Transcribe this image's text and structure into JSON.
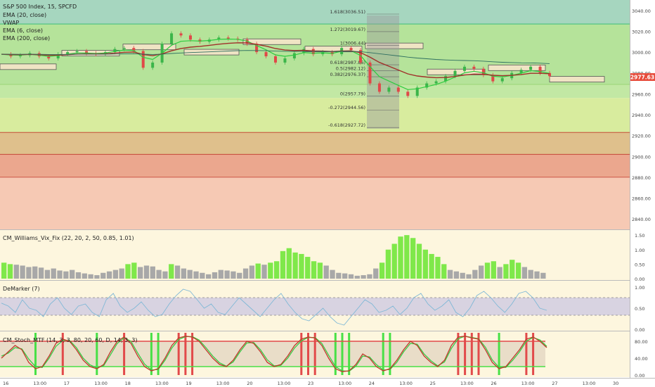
{
  "chart_data": [
    {
      "type": "line",
      "title": "S&P 500 Index, 15, SPCFD",
      "legend": [
        "EMA (20, close)",
        "VWAP",
        "EMA (6, close)",
        "EMA (200, close)"
      ],
      "legend_position": "top-left",
      "ylim": [
        2830,
        3050
      ],
      "y_ticks": [
        "3040.00",
        "3020.00",
        "3000.00",
        "2980.00",
        "2960.00",
        "2940.00",
        "2920.00",
        "2900.00",
        "2880.00",
        "2860.00",
        "2840.00"
      ],
      "last_price": "2977.63",
      "price_path": [
        2998,
        2996,
        2997,
        2999,
        2996,
        2994,
        2998,
        3000,
        3001,
        2999,
        2998,
        3000,
        3003,
        3004,
        3001,
        2985,
        2990,
        3008,
        3018,
        3016,
        3012,
        3010,
        3012,
        3014,
        3013,
        3012,
        3008,
        3000,
        2996,
        2990,
        2994,
        2999,
        3003,
        2998,
        3000,
        2998,
        3004,
        3002,
        2990,
        2970,
        2962,
        2966,
        2962,
        2958,
        2966,
        2970,
        2972,
        2977,
        2982,
        2986,
        2984,
        2978,
        2972,
        2975,
        2980,
        2983,
        2986,
        2980,
        2977
      ],
      "fib_levels": [
        {
          "label": "1.618(3036.51)",
          "value": 3036.51
        },
        {
          "label": "1.272(3019.67)",
          "value": 3019.67
        },
        {
          "label": "1(3006.44)",
          "value": 3006.44
        },
        {
          "label": "0.618(2987.86)",
          "value": 2987.86
        },
        {
          "label": "0.5(2982.12)",
          "value": 2982.12
        },
        {
          "label": "0.382(2976.37)",
          "value": 2976.37
        },
        {
          "label": "0(2957.79)",
          "value": 2957.79
        },
        {
          "label": "-0.272(2944.56)",
          "value": 2944.56
        },
        {
          "label": "-0.618(2927.72)",
          "value": 2927.72
        }
      ],
      "zones": [
        {
          "from": 3027,
          "to": 3050,
          "color": "#a6d6bf"
        },
        {
          "from": 2969,
          "to": 3027,
          "color": "#b5e39a"
        },
        {
          "from": 2956,
          "to": 2969,
          "color": "#c2e8a4"
        },
        {
          "from": 2923,
          "to": 2956,
          "color": "#d8ec9e"
        },
        {
          "from": 2902,
          "to": 2923,
          "color": "#dfc08c"
        },
        {
          "from": 2880,
          "to": 2902,
          "color": "#eba78e"
        },
        {
          "from": 2830,
          "to": 2880,
          "color": "#f6c9b4"
        }
      ],
      "boxes": [
        {
          "x0": 0,
          "x1": 80,
          "value": 2986
        },
        {
          "x0": 88,
          "x1": 170,
          "value": 2999
        },
        {
          "x0": 175,
          "x1": 250,
          "value": 3005
        },
        {
          "x0": 262,
          "x1": 340,
          "value": 3000
        },
        {
          "x0": 346,
          "x1": 428,
          "value": 3010
        },
        {
          "x0": 434,
          "x1": 515,
          "value": 3003
        },
        {
          "x0": 520,
          "x1": 602,
          "value": 3006
        },
        {
          "x0": 608,
          "x1": 690,
          "value": 2981
        },
        {
          "x0": 695,
          "x1": 776,
          "value": 2985
        },
        {
          "x0": 782,
          "x1": 860,
          "value": 2974
        }
      ]
    },
    {
      "type": "bar",
      "title": "CM_Williams_Vix_Fix (22, 20, 2, 50, 0.85, 1.01)",
      "ylim": [
        0,
        1.6
      ],
      "y_ticks": [
        "1.50",
        "1.00",
        "0.50",
        "0.00"
      ],
      "values": [
        0.55,
        0.5,
        0.48,
        0.45,
        0.4,
        0.42,
        0.38,
        0.3,
        0.35,
        0.28,
        0.25,
        0.3,
        0.22,
        0.18,
        0.15,
        0.12,
        0.2,
        0.25,
        0.3,
        0.35,
        0.5,
        0.55,
        0.4,
        0.45,
        0.42,
        0.3,
        0.25,
        0.5,
        0.45,
        0.35,
        0.3,
        0.25,
        0.2,
        0.15,
        0.22,
        0.3,
        0.28,
        0.25,
        0.2,
        0.35,
        0.45,
        0.52,
        0.48,
        0.55,
        0.6,
        0.95,
        1.05,
        0.9,
        0.85,
        0.75,
        0.6,
        0.55,
        0.45,
        0.3,
        0.2,
        0.18,
        0.15,
        0.1,
        0.12,
        0.15,
        0.35,
        0.55,
        1.0,
        1.2,
        1.45,
        1.5,
        1.4,
        1.2,
        1.0,
        0.85,
        0.75,
        0.5,
        0.3,
        0.25,
        0.2,
        0.15,
        0.3,
        0.45,
        0.55,
        0.6,
        0.4,
        0.5,
        0.65,
        0.55,
        0.4,
        0.3,
        0.25,
        0.2
      ],
      "highlight_color": "#7fe84a",
      "bar_color": "#a8a8a8"
    },
    {
      "type": "line",
      "title": "DeMarker (7)",
      "ylim": [
        0,
        1.1
      ],
      "y_ticks": [
        "1.00",
        "0.50",
        "0.00"
      ],
      "levels": [
        0.3,
        0.7
      ],
      "values": [
        0.62,
        0.55,
        0.4,
        0.7,
        0.5,
        0.45,
        0.3,
        0.6,
        0.75,
        0.5,
        0.35,
        0.55,
        0.6,
        0.4,
        0.3,
        0.7,
        0.85,
        0.55,
        0.4,
        0.5,
        0.65,
        0.45,
        0.3,
        0.35,
        0.6,
        0.8,
        0.95,
        0.9,
        0.7,
        0.5,
        0.6,
        0.4,
        0.35,
        0.55,
        0.75,
        0.6,
        0.45,
        0.3,
        0.5,
        0.7,
        0.85,
        0.6,
        0.4,
        0.25,
        0.2,
        0.35,
        0.5,
        0.3,
        0.15,
        0.1,
        0.3,
        0.5,
        0.7,
        0.6,
        0.4,
        0.45,
        0.55,
        0.35,
        0.5,
        0.75,
        0.85,
        0.6,
        0.45,
        0.55,
        0.7,
        0.4,
        0.3,
        0.5,
        0.8,
        0.9,
        0.75,
        0.55,
        0.4,
        0.6,
        0.85,
        0.9,
        0.75,
        0.5,
        0.45
      ]
    },
    {
      "type": "line",
      "title": "CM_Stoch_MTF (14, 3, 3, 80, 20, 60, D, 14, 3, 3)",
      "ylim": [
        0,
        100
      ],
      "y_ticks": [
        "80.00",
        "40.00",
        "0.00"
      ],
      "levels": [
        80,
        20
      ],
      "values": [
        40,
        55,
        70,
        60,
        30,
        15,
        20,
        45,
        75,
        85,
        80,
        60,
        35,
        20,
        15,
        25,
        55,
        80,
        90,
        75,
        45,
        20,
        10,
        15,
        40,
        70,
        88,
        92,
        90,
        80,
        60,
        40,
        25,
        20,
        35,
        60,
        80,
        75,
        55,
        30,
        20,
        25,
        45,
        70,
        85,
        90,
        88,
        70,
        40,
        15,
        8,
        10,
        25,
        50,
        40,
        20,
        10,
        15,
        35,
        60,
        80,
        70,
        45,
        30,
        20,
        35,
        70,
        90,
        92,
        88,
        85,
        60,
        30,
        15,
        20,
        40,
        60,
        85,
        90,
        80,
        65
      ],
      "signal_values": [
        45,
        52,
        65,
        62,
        38,
        20,
        18,
        40,
        68,
        82,
        82,
        65,
        40,
        24,
        17,
        22,
        48,
        75,
        88,
        80,
        52,
        26,
        12,
        13,
        35,
        64,
        84,
        91,
        91,
        83,
        65,
        45,
        29,
        21,
        31,
        55,
        76,
        77,
        60,
        36,
        22,
        23,
        40,
        64,
        81,
        89,
        89,
        75,
        47,
        20,
        10,
        9,
        21,
        45,
        43,
        25,
        12,
        13,
        30,
        55,
        75,
        73,
        50,
        34,
        22,
        31,
        63,
        86,
        92,
        89,
        86,
        66,
        36,
        18,
        18,
        35,
        55,
        80,
        89,
        83,
        68
      ],
      "line_color": "#c0392b",
      "signal_color": "#2ecc40"
    }
  ],
  "x_axis": {
    "labels": [
      "16",
      "13:00",
      "17",
      "13:00",
      "18",
      "13:00",
      "19",
      "13:00",
      "20",
      "13:00",
      "23",
      "13:00",
      "24",
      "13:00",
      "25",
      "13:00",
      "26",
      "13:00",
      "27",
      "13:00",
      "30"
    ]
  },
  "colors": {
    "red_marker": "#e24a4a",
    "green_marker": "#48e046",
    "fib_box": "#9b9b9b",
    "box_fill": "#efe4c4",
    "pane_bg": "#fdf6de",
    "last_price_bg": "#e74c3c"
  }
}
